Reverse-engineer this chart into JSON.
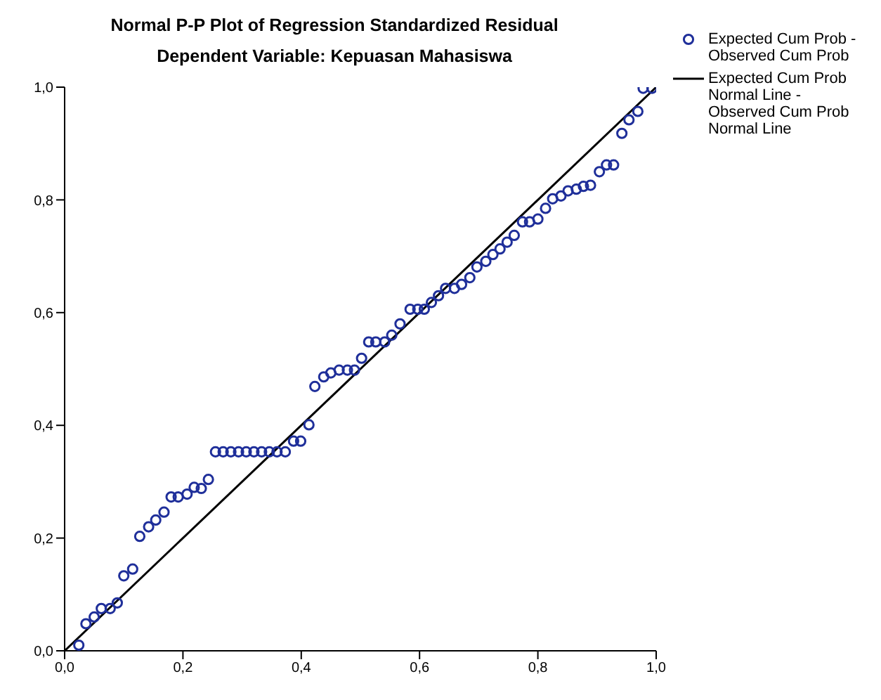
{
  "chart_data": {
    "type": "scatter",
    "title": "Normal P-P Plot of Regression Standardized Residual",
    "subtitle": "Dependent Variable: Kepuasan Mahasiswa",
    "xlim": [
      0,
      1
    ],
    "ylim": [
      0,
      1
    ],
    "xticks": [
      {
        "value": 0,
        "label": "0,0"
      },
      {
        "value": 0.2,
        "label": "0,2"
      },
      {
        "value": 0.4,
        "label": "0,4"
      },
      {
        "value": 0.6,
        "label": "0,6"
      },
      {
        "value": 0.8,
        "label": "0,8"
      },
      {
        "value": 1,
        "label": "1,0"
      }
    ],
    "yticks": [
      {
        "value": 0,
        "label": "0,0"
      },
      {
        "value": 0.2,
        "label": "0,2"
      },
      {
        "value": 0.4,
        "label": "0,4"
      },
      {
        "value": 0.6,
        "label": "0,6"
      },
      {
        "value": 0.8,
        "label": "0,8"
      },
      {
        "value": 1,
        "label": "1,0"
      }
    ],
    "grid": false,
    "legend": "top right",
    "series": [
      {
        "name": "Expected Cum Prob - Observed Cum Prob",
        "marker": "circle",
        "color": "#1f2f9a",
        "x": [
          0.024,
          0.036,
          0.05,
          0.062,
          0.077,
          0.089,
          0.1,
          0.115,
          0.127,
          0.142,
          0.154,
          0.168,
          0.18,
          0.192,
          0.207,
          0.219,
          0.231,
          0.243,
          0.255,
          0.268,
          0.281,
          0.294,
          0.307,
          0.32,
          0.333,
          0.346,
          0.359,
          0.373,
          0.387,
          0.399,
          0.413,
          0.423,
          0.438,
          0.45,
          0.464,
          0.478,
          0.49,
          0.502,
          0.514,
          0.526,
          0.541,
          0.553,
          0.567,
          0.584,
          0.597,
          0.608,
          0.62,
          0.632,
          0.644,
          0.659,
          0.671,
          0.685,
          0.697,
          0.712,
          0.724,
          0.736,
          0.748,
          0.76,
          0.774,
          0.786,
          0.8,
          0.813,
          0.825,
          0.839,
          0.851,
          0.865,
          0.877,
          0.889,
          0.904,
          0.916,
          0.928,
          0.942,
          0.954,
          0.969,
          0.978,
          0.993
        ],
        "values": [
          0.01,
          0.048,
          0.06,
          0.075,
          0.075,
          0.085,
          0.133,
          0.145,
          0.203,
          0.22,
          0.232,
          0.246,
          0.273,
          0.273,
          0.278,
          0.29,
          0.288,
          0.304,
          0.353,
          0.353,
          0.353,
          0.353,
          0.353,
          0.353,
          0.353,
          0.353,
          0.353,
          0.353,
          0.372,
          0.372,
          0.401,
          0.469,
          0.486,
          0.493,
          0.498,
          0.498,
          0.498,
          0.519,
          0.548,
          0.548,
          0.548,
          0.56,
          0.58,
          0.606,
          0.606,
          0.606,
          0.618,
          0.63,
          0.643,
          0.643,
          0.65,
          0.662,
          0.681,
          0.691,
          0.703,
          0.713,
          0.725,
          0.737,
          0.761,
          0.761,
          0.766,
          0.785,
          0.802,
          0.807,
          0.816,
          0.819,
          0.824,
          0.826,
          0.85,
          0.862,
          0.862,
          0.918,
          0.942,
          0.957,
          0.998,
          0.998
        ]
      },
      {
        "name": "Expected Cum Prob Normal Line - Observed Cum Prob Normal Line",
        "type": "line",
        "marker": "none",
        "line_style": "solid",
        "color": "#000000",
        "x": [
          0,
          1
        ],
        "values": [
          0,
          1
        ]
      }
    ]
  }
}
